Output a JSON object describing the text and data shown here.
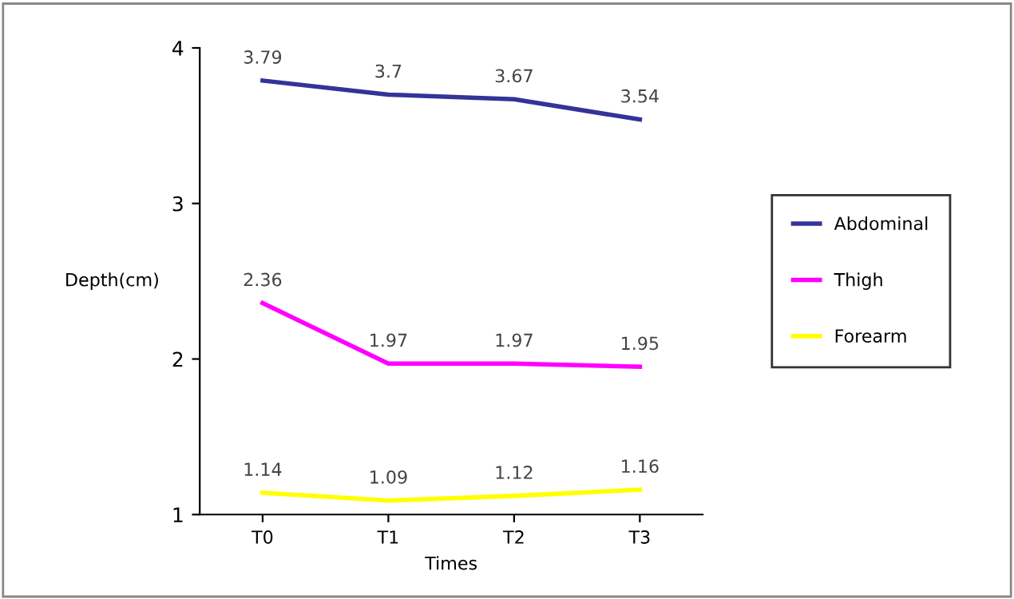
{
  "chart_data": {
    "type": "line",
    "xlabel": "Times",
    "ylabel": "Depth(cm)",
    "categories": [
      "T0",
      "T1",
      "T2",
      "T3"
    ],
    "series": [
      {
        "name": "Abdominal",
        "color": "#333399",
        "values": [
          3.79,
          3.7,
          3.67,
          3.54
        ]
      },
      {
        "name": "Thigh",
        "color": "#ff00ff",
        "values": [
          2.36,
          1.97,
          1.97,
          1.95
        ]
      },
      {
        "name": "Forearm",
        "color": "#ffff00",
        "values": [
          1.14,
          1.09,
          1.12,
          1.16
        ]
      }
    ],
    "ylim": [
      1,
      4
    ],
    "yticks": [
      1,
      2,
      3,
      4
    ],
    "grid": false,
    "legend": "right",
    "data_labels": true,
    "marker": "none",
    "line_style": "solid"
  }
}
